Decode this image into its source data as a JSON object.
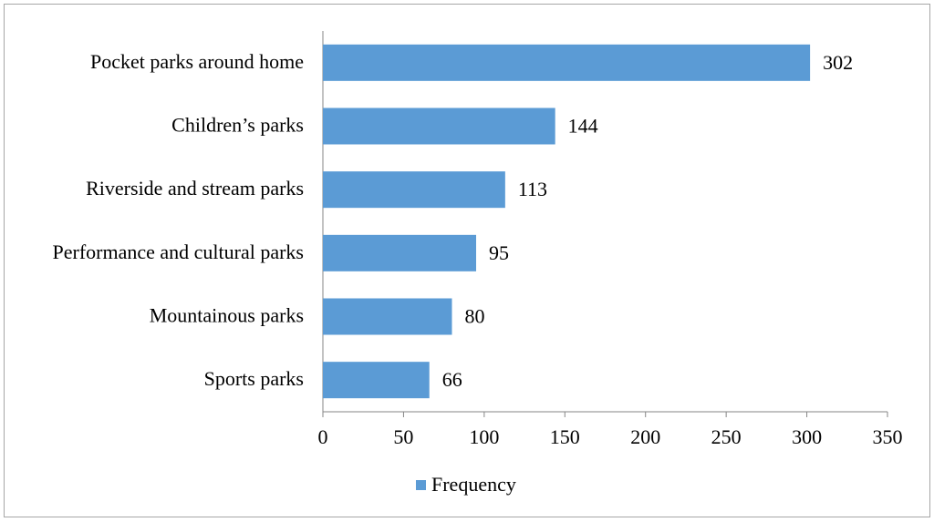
{
  "chart_data": {
    "type": "bar",
    "orientation": "horizontal",
    "categories": [
      "Pocket parks around home",
      "Children’s parks",
      "Riverside and stream parks",
      "Performance and cultural parks",
      "Mountainous parks",
      "Sports parks"
    ],
    "series": [
      {
        "name": "Frequency",
        "color": "#5b9bd5",
        "values": [
          302,
          144,
          113,
          95,
          80,
          66
        ]
      }
    ],
    "xlim": [
      0,
      350
    ],
    "xticks": [
      0,
      50,
      100,
      150,
      200,
      250,
      300,
      350
    ],
    "legend": "bottom"
  }
}
